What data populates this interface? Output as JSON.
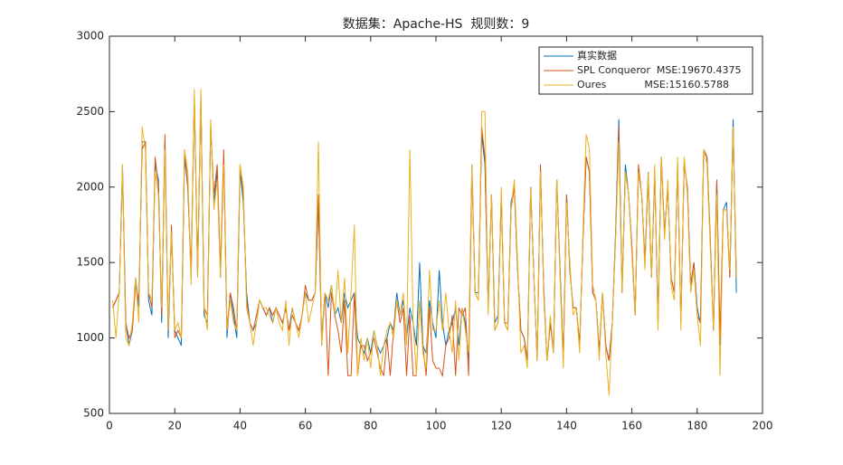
{
  "chart_data": {
    "type": "line",
    "title": "数据集：Apache-HS  规则数：9",
    "x": [
      1,
      2,
      3,
      4,
      5,
      6,
      7,
      8,
      9,
      10,
      11,
      12,
      13,
      14,
      15,
      16,
      17,
      18,
      19,
      20,
      21,
      22,
      23,
      24,
      25,
      26,
      27,
      28,
      29,
      30,
      31,
      32,
      33,
      34,
      35,
      36,
      37,
      38,
      39,
      40,
      41,
      42,
      43,
      44,
      45,
      46,
      47,
      48,
      49,
      50,
      51,
      52,
      53,
      54,
      55,
      56,
      57,
      58,
      59,
      60,
      61,
      62,
      63,
      64,
      65,
      66,
      67,
      68,
      69,
      70,
      71,
      72,
      73,
      74,
      75,
      76,
      77,
      78,
      79,
      80,
      81,
      82,
      83,
      84,
      85,
      86,
      87,
      88,
      89,
      90,
      91,
      92,
      93,
      94,
      95,
      96,
      97,
      98,
      99,
      100,
      101,
      102,
      103,
      104,
      105,
      106,
      107,
      108,
      109,
      110,
      111,
      112,
      113,
      114,
      115,
      116,
      117,
      118,
      119,
      120,
      121,
      122,
      123,
      124,
      125,
      126,
      127,
      128,
      129,
      130,
      131,
      132,
      133,
      134,
      135,
      136,
      137,
      138,
      139,
      140,
      141,
      142,
      143,
      144,
      145,
      146,
      147,
      148,
      149,
      150,
      151,
      152,
      153,
      154,
      155,
      156,
      157,
      158,
      159,
      160,
      161,
      162,
      163,
      164,
      165,
      166,
      167,
      168,
      169,
      170,
      171,
      172,
      173,
      174,
      175,
      176,
      177,
      178,
      179,
      180,
      181,
      182,
      183,
      184,
      185,
      186,
      187,
      188,
      189,
      190,
      191,
      192
    ],
    "series": [
      {
        "name": "真实数据",
        "color": "#0072BD",
        "values": [
          1200,
          1250,
          1300,
          2150,
          1100,
          950,
          1050,
          1400,
          1200,
          2300,
          2300,
          1250,
          1150,
          2150,
          2050,
          1100,
          2300,
          1000,
          1700,
          1050,
          1000,
          950,
          2200,
          2000,
          1400,
          2600,
          1400,
          2600,
          1150,
          1100,
          2400,
          1900,
          2100,
          1400,
          2200,
          1000,
          1300,
          1150,
          1000,
          2100,
          1900,
          1300,
          1100,
          1050,
          1100,
          1250,
          1200,
          1150,
          1200,
          1100,
          1200,
          1150,
          1100,
          1200,
          1050,
          1200,
          1100,
          1050,
          1150,
          1300,
          1250,
          1250,
          1300,
          1900,
          1000,
          1300,
          1200,
          1350,
          1150,
          1200,
          1100,
          1300,
          1200,
          1250,
          1300,
          1000,
          950,
          900,
          1000,
          900,
          1050,
          950,
          900,
          950,
          1000,
          1100,
          1050,
          1300,
          1150,
          1250,
          1000,
          1200,
          1100,
          950,
          1500,
          950,
          900,
          1250,
          1100,
          1000,
          1450,
          1100,
          950,
          1050,
          1100,
          1200,
          950,
          1200,
          1100,
          850,
          2150,
          1300,
          1300,
          2350,
          2150,
          1200,
          1950,
          1100,
          1150,
          1950,
          1100,
          1050,
          1900,
          2000,
          1450,
          1050,
          1000,
          850,
          2000,
          1400,
          850,
          2100,
          1350,
          850,
          1100,
          900,
          2050,
          1450,
          850,
          1950,
          1450,
          1200,
          1200,
          950,
          1650,
          2200,
          2100,
          1300,
          1250,
          900,
          1300,
          950,
          850,
          1100,
          1700,
          2450,
          1300,
          2150,
          1950,
          1600,
          1150,
          2100,
          1950,
          1500,
          2100,
          1400,
          2100,
          1100,
          2200,
          1700,
          2000,
          1400,
          1300,
          2150,
          1100,
          2150,
          2000,
          1350,
          1500,
          1200,
          1100,
          2250,
          2200,
          1650,
          1050,
          2050,
          950,
          1850,
          1900,
          1400,
          2450,
          1300
        ]
      },
      {
        "name": "SPL Conqueror  MSE:19670.4375",
        "color": "#D95319",
        "values": [
          1200,
          1250,
          1300,
          2100,
          1100,
          1000,
          1050,
          1350,
          1250,
          2250,
          2300,
          1300,
          1200,
          2200,
          2000,
          1150,
          2350,
          1050,
          1750,
          1000,
          1050,
          1000,
          2250,
          2000,
          1450,
          2600,
          1450,
          2600,
          1200,
          1150,
          2400,
          1950,
          2150,
          1450,
          2250,
          1050,
          1300,
          1200,
          1050,
          2150,
          1950,
          1250,
          1100,
          1050,
          1150,
          1250,
          1200,
          1150,
          1200,
          1150,
          1200,
          1150,
          1100,
          1200,
          1050,
          1150,
          1100,
          1050,
          1150,
          1350,
          1250,
          1250,
          1300,
          1950,
          950,
          1300,
          750,
          1300,
          1150,
          1050,
          900,
          1250,
          750,
          750,
          1300,
          750,
          950,
          950,
          850,
          900,
          1000,
          900,
          800,
          750,
          1000,
          750,
          1050,
          1250,
          1100,
          1200,
          750,
          1150,
          750,
          750,
          1250,
          950,
          750,
          1200,
          850,
          800,
          800,
          750,
          950,
          1000,
          1150,
          750,
          1200,
          1150,
          1200,
          750,
          2100,
          1300,
          1250,
          2400,
          2200,
          1200,
          1950,
          1050,
          1100,
          1950,
          1100,
          1100,
          1850,
          2000,
          1450,
          1050,
          1000,
          850,
          2000,
          1400,
          850,
          2150,
          1300,
          850,
          1100,
          900,
          2050,
          1450,
          850,
          1950,
          1450,
          1200,
          1200,
          950,
          1650,
          2200,
          2100,
          1300,
          1250,
          900,
          1300,
          950,
          850,
          1100,
          1650,
          2400,
          1300,
          2100,
          1950,
          1600,
          1150,
          2150,
          1950,
          1500,
          2050,
          1400,
          2100,
          1100,
          2200,
          1700,
          2000,
          1400,
          1300,
          2150,
          1100,
          2150,
          2000,
          1350,
          1500,
          1150,
          1100,
          2250,
          2200,
          1650,
          1050,
          2050,
          1000,
          1850,
          1850,
          1400,
          2400,
          1400
        ]
      },
      {
        "name": "Oures            MSE:15160.5788",
        "color": "#EDB120",
        "values": [
          1250,
          1000,
          1300,
          2150,
          1000,
          950,
          1100,
          1400,
          1100,
          2400,
          2250,
          1300,
          1250,
          2100,
          1950,
          1200,
          2250,
          1050,
          1700,
          1050,
          1100,
          1000,
          2250,
          2100,
          1350,
          2650,
          1400,
          2650,
          1200,
          1050,
          2450,
          1850,
          2050,
          1400,
          2150,
          1050,
          1250,
          1100,
          1050,
          2150,
          2000,
          1200,
          1100,
          950,
          1100,
          1250,
          1200,
          1200,
          1150,
          1100,
          1200,
          1100,
          1050,
          1250,
          950,
          1200,
          1100,
          1000,
          1150,
          1300,
          1100,
          1200,
          1300,
          2300,
          950,
          1300,
          1250,
          1350,
          1150,
          1450,
          1100,
          1400,
          900,
          1300,
          1750,
          750,
          1000,
          850,
          1000,
          800,
          1050,
          950,
          750,
          950,
          1050,
          1100,
          1000,
          1250,
          1150,
          1300,
          950,
          2250,
          1100,
          750,
          1250,
          900,
          800,
          1450,
          1050,
          1050,
          1250,
          1050,
          1300,
          1050,
          900,
          1250,
          850,
          1200,
          1050,
          900,
          2150,
          1300,
          1250,
          2500,
          2500,
          1150,
          1950,
          1050,
          1100,
          2000,
          1100,
          1050,
          1850,
          2050,
          1500,
          900,
          950,
          800,
          2000,
          1400,
          850,
          2100,
          1350,
          850,
          1150,
          900,
          2050,
          1400,
          800,
          1900,
          1500,
          1150,
          1200,
          900,
          1700,
          2350,
          2250,
          1350,
          1250,
          850,
          1300,
          900,
          620,
          1100,
          1650,
          2300,
          1300,
          2100,
          1950,
          1550,
          1150,
          2100,
          1950,
          1450,
          2100,
          1400,
          2150,
          1050,
          2200,
          1650,
          2050,
          1350,
          1250,
          2200,
          1050,
          2200,
          1950,
          1300,
          1450,
          1150,
          950,
          2250,
          2150,
          1600,
          1050,
          1950,
          750,
          1850,
          1850,
          1450,
          2400,
          1400
        ]
      }
    ],
    "xlim": [
      0,
      200
    ],
    "xticks": [
      0,
      20,
      40,
      60,
      80,
      100,
      120,
      140,
      160,
      180,
      200
    ],
    "ylim": [
      500,
      3000
    ],
    "yticks": [
      500,
      1000,
      1500,
      2000,
      2500,
      3000
    ],
    "grid": false,
    "legend": "northeast"
  }
}
